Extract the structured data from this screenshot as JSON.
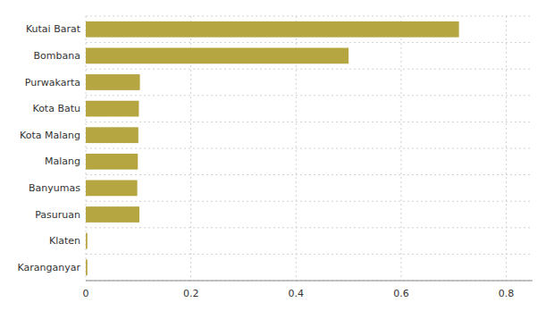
{
  "chart_data": {
    "type": "bar",
    "orientation": "horizontal",
    "categories": [
      "Karanganyar",
      "Klaten",
      "Pasuruan",
      "Banyumas",
      "Malang",
      "Kota Malang",
      "Kota Batu",
      "Purwakarta",
      "Bombana",
      "Kutai Barat"
    ],
    "values": [
      0.003,
      0.003,
      0.102,
      0.098,
      0.099,
      0.1,
      0.101,
      0.103,
      0.5,
      0.71
    ],
    "color": "#b5a642",
    "xlim": [
      0,
      0.85
    ],
    "xticks": [
      0,
      0.2,
      0.4,
      0.6,
      0.8
    ],
    "grid": true
  }
}
